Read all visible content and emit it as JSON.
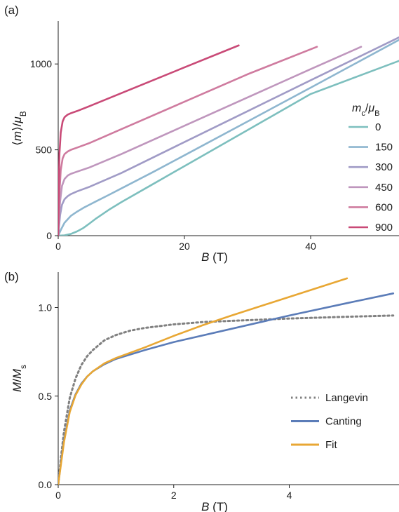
{
  "chart_data": [
    {
      "panel_label": "(a)",
      "type": "line",
      "xlabel": {
        "italic": "B",
        "rest": " (T)"
      },
      "ylabel": {
        "pre": "⟨",
        "italic": "m",
        "mid": "⟩/",
        "italic2": "μ",
        "sub": "B"
      },
      "xlim": [
        0,
        54
      ],
      "ylim": [
        0,
        1250
      ],
      "xticks": [
        0,
        20,
        40
      ],
      "yticks": [
        0,
        500,
        1000
      ],
      "legend_title": {
        "italic": "m",
        "sub": "c",
        "slash": "/",
        "italic2": "μ",
        "sub2": "B"
      },
      "legend_position": "right",
      "series": [
        {
          "name": "0",
          "color": "#7dbfbe",
          "x": [
            0,
            1,
            2,
            3,
            4,
            5,
            6,
            8,
            10,
            15,
            20,
            30,
            40,
            54
          ],
          "y": [
            0,
            2,
            10,
            25,
            45,
            72,
            100,
            150,
            195,
            300,
            405,
            615,
            825,
            1018
          ]
        },
        {
          "name": "150",
          "color": "#8eb6cf",
          "x": [
            0,
            0.5,
            1,
            2,
            3,
            4,
            6,
            8,
            10,
            15,
            20,
            30,
            40,
            54
          ],
          "y": [
            0,
            40,
            75,
            115,
            140,
            162,
            200,
            237,
            275,
            370,
            468,
            665,
            862,
            1140
          ]
        },
        {
          "name": "300",
          "color": "#a09bc6",
          "x": [
            0,
            0.3,
            0.6,
            1,
            1.5,
            2,
            3,
            5,
            10,
            20,
            30,
            40,
            54
          ],
          "y": [
            0,
            120,
            180,
            212,
            230,
            242,
            258,
            285,
            365,
            545,
            725,
            905,
            1155
          ]
        },
        {
          "name": "450",
          "color": "#bf96bd",
          "x": [
            0,
            0.3,
            0.6,
            1,
            1.5,
            2,
            3,
            5,
            10,
            20,
            30,
            40,
            48
          ],
          "y": [
            0,
            200,
            290,
            330,
            350,
            360,
            373,
            398,
            475,
            640,
            805,
            970,
            1100
          ]
        },
        {
          "name": "600",
          "color": "#cf7b9f",
          "x": [
            0,
            0.2,
            0.4,
            0.7,
            1,
            1.5,
            2,
            3,
            5,
            10,
            20,
            30,
            41
          ],
          "y": [
            0,
            250,
            380,
            450,
            475,
            490,
            500,
            513,
            540,
            620,
            780,
            940,
            1100
          ]
        },
        {
          "name": "900",
          "color": "#c94a77",
          "x": [
            0,
            0.1,
            0.2,
            0.4,
            0.7,
            1,
            1.5,
            2,
            3,
            5,
            10,
            20,
            28.6
          ],
          "y": [
            0,
            300,
            480,
            600,
            665,
            690,
            705,
            713,
            726,
            755,
            830,
            980,
            1108
          ]
        }
      ]
    },
    {
      "panel_label": "(b)",
      "type": "line",
      "xlabel": {
        "italic": "B",
        "rest": " (T)"
      },
      "ylabel": {
        "italic": "M",
        "slash": "/",
        "italic2": "M",
        "sub": "s"
      },
      "xlim": [
        0,
        5.9
      ],
      "ylim": [
        0,
        1.2
      ],
      "xticks": [
        0,
        2,
        4
      ],
      "yticks": [
        0.0,
        0.5,
        1.0
      ],
      "ytick_labels": [
        "0.0",
        "0.5",
        "1.0"
      ],
      "legend_position": "lower right",
      "series": [
        {
          "name": "Langevin",
          "color": "#808080",
          "dash": "dotted",
          "x": [
            0,
            0.05,
            0.1,
            0.2,
            0.3,
            0.4,
            0.5,
            0.6,
            0.8,
            1.0,
            1.25,
            1.5,
            2.0,
            2.5,
            3.0,
            4.0,
            5.0,
            5.8
          ],
          "y": [
            0,
            0.16,
            0.3,
            0.49,
            0.6,
            0.675,
            0.725,
            0.76,
            0.815,
            0.845,
            0.87,
            0.885,
            0.905,
            0.918,
            0.925,
            0.938,
            0.948,
            0.955
          ]
        },
        {
          "name": "Canting",
          "color": "#5b7cb8",
          "dash": "solid",
          "x": [
            0,
            0.05,
            0.1,
            0.2,
            0.3,
            0.4,
            0.5,
            0.6,
            0.8,
            1.0,
            1.5,
            2.0,
            3.0,
            4.0,
            5.0,
            5.8
          ],
          "y": [
            0,
            0.13,
            0.25,
            0.42,
            0.51,
            0.57,
            0.61,
            0.64,
            0.68,
            0.71,
            0.76,
            0.805,
            0.88,
            0.955,
            1.025,
            1.08
          ]
        },
        {
          "name": "Fit",
          "color": "#e8a734",
          "dash": "solid",
          "x": [
            0,
            0.05,
            0.1,
            0.2,
            0.3,
            0.4,
            0.5,
            0.6,
            0.8,
            1.0,
            1.5,
            2.0,
            2.5,
            3.0,
            4.0,
            5.0
          ],
          "y": [
            0,
            0.12,
            0.24,
            0.41,
            0.505,
            0.565,
            0.61,
            0.64,
            0.685,
            0.715,
            0.775,
            0.84,
            0.9,
            0.955,
            1.06,
            1.165
          ]
        }
      ]
    }
  ]
}
